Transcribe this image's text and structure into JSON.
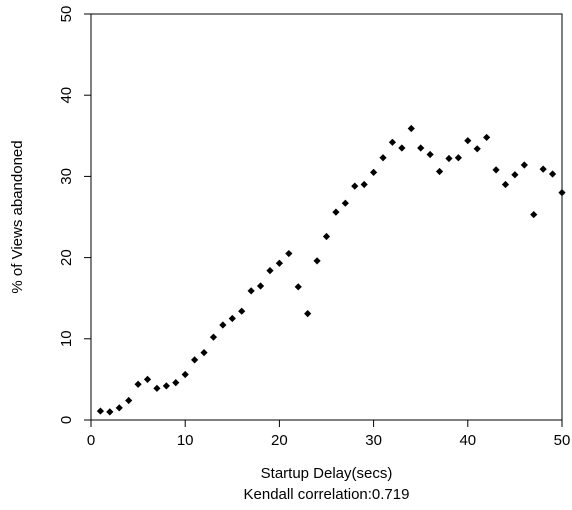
{
  "chart_data": {
    "type": "scatter",
    "title": "",
    "xlabel": "Startup Delay(secs)",
    "xlabel_sub": "Kendall correlation:0.719",
    "ylabel": "% of Views abandoned",
    "xlim": [
      0,
      50
    ],
    "ylim": [
      0,
      50
    ],
    "xticks": [
      "0",
      "10",
      "20",
      "30",
      "40",
      "50"
    ],
    "yticks": [
      "0",
      "10",
      "20",
      "30",
      "40",
      "50"
    ],
    "grid": false,
    "legend": "none",
    "marker": "diamond",
    "colors": {
      "point": "#000000",
      "axis": "#000000",
      "background": "#ffffff"
    },
    "points": [
      {
        "x": 1,
        "y": 1.1
      },
      {
        "x": 2,
        "y": 1.0
      },
      {
        "x": 3,
        "y": 1.5
      },
      {
        "x": 4,
        "y": 2.4
      },
      {
        "x": 5,
        "y": 4.4
      },
      {
        "x": 6,
        "y": 5.0
      },
      {
        "x": 7,
        "y": 3.9
      },
      {
        "x": 8,
        "y": 4.2
      },
      {
        "x": 9,
        "y": 4.6
      },
      {
        "x": 10,
        "y": 5.6
      },
      {
        "x": 11,
        "y": 7.4
      },
      {
        "x": 12,
        "y": 8.3
      },
      {
        "x": 13,
        "y": 10.2
      },
      {
        "x": 14,
        "y": 11.7
      },
      {
        "x": 15,
        "y": 12.5
      },
      {
        "x": 16,
        "y": 13.4
      },
      {
        "x": 17,
        "y": 15.9
      },
      {
        "x": 18,
        "y": 16.5
      },
      {
        "x": 19,
        "y": 18.4
      },
      {
        "x": 20,
        "y": 19.3
      },
      {
        "x": 21,
        "y": 20.5
      },
      {
        "x": 22,
        "y": 16.4
      },
      {
        "x": 23,
        "y": 13.1
      },
      {
        "x": 24,
        "y": 19.6
      },
      {
        "x": 25,
        "y": 22.6
      },
      {
        "x": 26,
        "y": 25.6
      },
      {
        "x": 27,
        "y": 26.7
      },
      {
        "x": 28,
        "y": 28.8
      },
      {
        "x": 29,
        "y": 29.0
      },
      {
        "x": 30,
        "y": 30.5
      },
      {
        "x": 31,
        "y": 32.3
      },
      {
        "x": 32,
        "y": 34.2
      },
      {
        "x": 33,
        "y": 33.5
      },
      {
        "x": 34,
        "y": 35.9
      },
      {
        "x": 35,
        "y": 33.5
      },
      {
        "x": 36,
        "y": 32.7
      },
      {
        "x": 37,
        "y": 30.6
      },
      {
        "x": 38,
        "y": 32.2
      },
      {
        "x": 39,
        "y": 32.3
      },
      {
        "x": 40,
        "y": 34.4
      },
      {
        "x": 41,
        "y": 33.4
      },
      {
        "x": 42,
        "y": 34.8
      },
      {
        "x": 43,
        "y": 30.8
      },
      {
        "x": 44,
        "y": 29.0
      },
      {
        "x": 45,
        "y": 30.2
      },
      {
        "x": 46,
        "y": 31.4
      },
      {
        "x": 47,
        "y": 25.3
      },
      {
        "x": 48,
        "y": 30.9
      },
      {
        "x": 49,
        "y": 30.3
      },
      {
        "x": 50,
        "y": 28.0
      }
    ]
  }
}
